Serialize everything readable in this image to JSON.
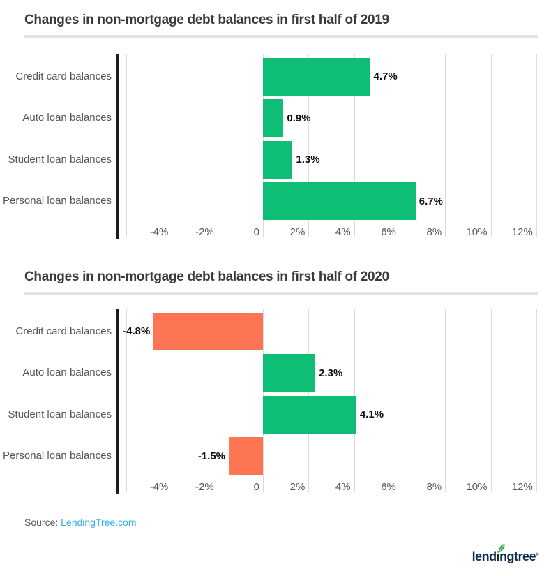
{
  "chart_data": [
    {
      "type": "bar",
      "orientation": "horizontal",
      "title": "Changes in non-mortgage debt balances in first half of 2019",
      "categories": [
        "Credit card balances",
        "Auto loan balances",
        "Student loan balances",
        "Personal loan balances"
      ],
      "values": [
        4.7,
        0.9,
        1.3,
        6.7
      ],
      "value_labels": [
        "4.7%",
        "0.9%",
        "1.3%",
        "6.7%"
      ],
      "xlabel": "",
      "ylabel": "",
      "xlim": [
        -6,
        13
      ],
      "grid_step": 2,
      "grid_on": true,
      "xticks": {
        "values": [
          -4,
          -2,
          0,
          2,
          4,
          6,
          8,
          10,
          12
        ],
        "labels": [
          "-4%",
          "-2%",
          "0",
          "2%",
          "4%",
          "6%",
          "8%",
          "10%",
          "12%"
        ]
      }
    },
    {
      "type": "bar",
      "orientation": "horizontal",
      "title": "Changes in non-mortgage debt balances in first half of 2020",
      "categories": [
        "Credit card balances",
        "Auto loan balances",
        "Student loan balances",
        "Personal loan balances"
      ],
      "values": [
        -4.8,
        2.3,
        4.1,
        -1.5
      ],
      "value_labels": [
        "-4.8%",
        "2.3%",
        "4.1%",
        "-1.5%"
      ],
      "xlabel": "",
      "ylabel": "",
      "xlim": [
        -6,
        13
      ],
      "grid_step": 2,
      "grid_on": true,
      "xticks": {
        "values": [
          -4,
          -2,
          0,
          2,
          4,
          6,
          8,
          10,
          12
        ],
        "labels": [
          "-4%",
          "-2%",
          "0",
          "2%",
          "4%",
          "6%",
          "8%",
          "10%",
          "12%"
        ]
      }
    }
  ],
  "colors": {
    "positive_bar": "#0fbe75",
    "negative_bar": "#fd7552",
    "axis": "#1c1c1c",
    "gridline": "#dcdcdc",
    "title_text": "#3a3a3b",
    "label_text": "#54565a",
    "value_text": "#0d0d0d",
    "divider": "#e4e4e4",
    "link_blue": "#2fb2ec",
    "logo_navy": "#0f2b4c",
    "logo_leaf_green": "#2fb14a"
  },
  "footer": {
    "source_prefix": "Source: ",
    "source_link": "LendingTree.com",
    "logo_text": "lendingtree",
    "logo_reg_mark": "®"
  }
}
